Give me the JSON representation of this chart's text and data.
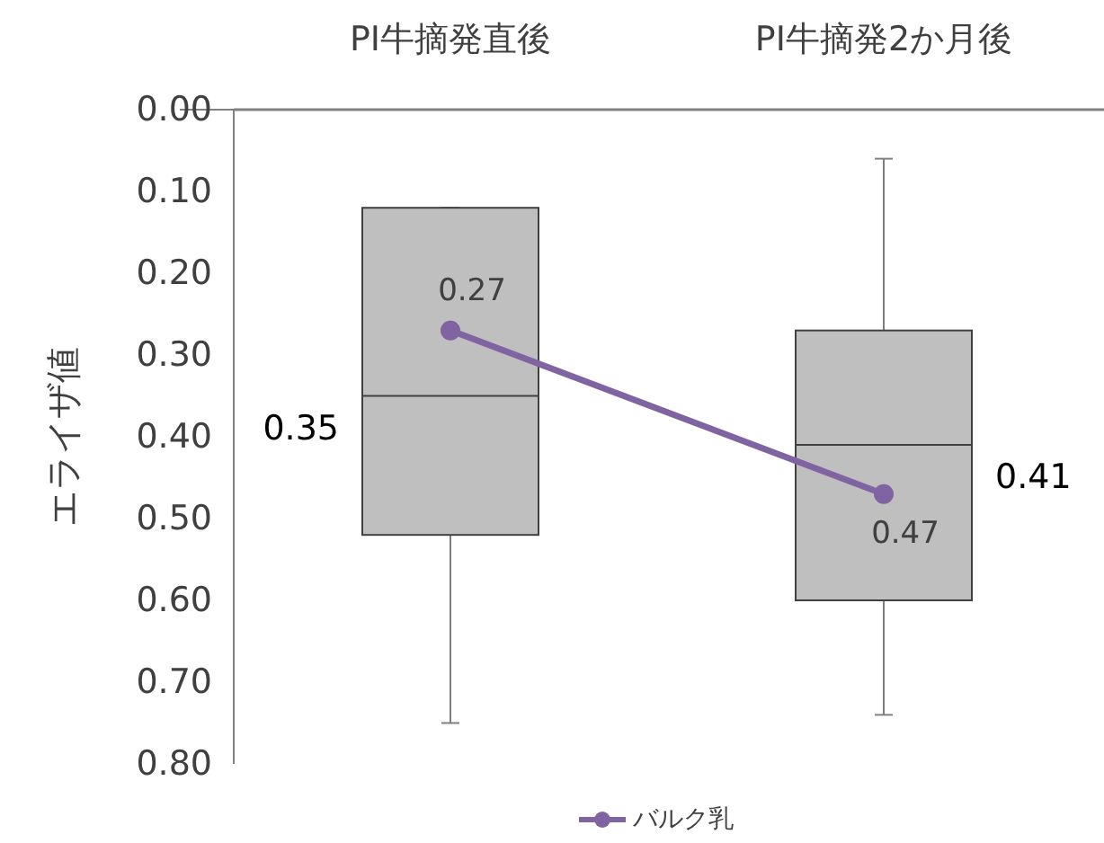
{
  "chart_data": {
    "type": "box",
    "ylabel": "エライザ値",
    "categories": [
      "PI牛摘発直後",
      "PI牛摘発2か月後"
    ],
    "boxes": [
      {
        "low": 0.12,
        "q1": 0.12,
        "median": 0.35,
        "q3": 0.52,
        "high": 0.75
      },
      {
        "low": 0.06,
        "q1": 0.27,
        "median": 0.41,
        "q3": 0.6,
        "high": 0.74
      }
    ],
    "color": "#bfbfbf",
    "series": [
      {
        "name": "バルク乳",
        "type": "line",
        "color": "#8064a2",
        "x": [
          "PI牛摘発直後",
          "PI牛摘発2か月後"
        ],
        "values": [
          0.27,
          0.47
        ],
        "marker": "circle"
      }
    ],
    "data_labels": true,
    "annotations": [
      "0.35",
      "0.41"
    ],
    "ylim": [
      0.8,
      0.0
    ],
    "yticks": [
      {
        "value": 0.0,
        "label": "0.00"
      },
      {
        "value": 0.1,
        "label": "0.10"
      },
      {
        "value": 0.2,
        "label": "0.20"
      },
      {
        "value": 0.3,
        "label": "0.30"
      },
      {
        "value": 0.4,
        "label": "0.40"
      },
      {
        "value": 0.5,
        "label": "0.50"
      },
      {
        "value": 0.6,
        "label": "0.60"
      },
      {
        "value": 0.7,
        "label": "0.70"
      },
      {
        "value": 0.8,
        "label": "0.80"
      }
    ],
    "grid": false,
    "legend": "bottom"
  }
}
